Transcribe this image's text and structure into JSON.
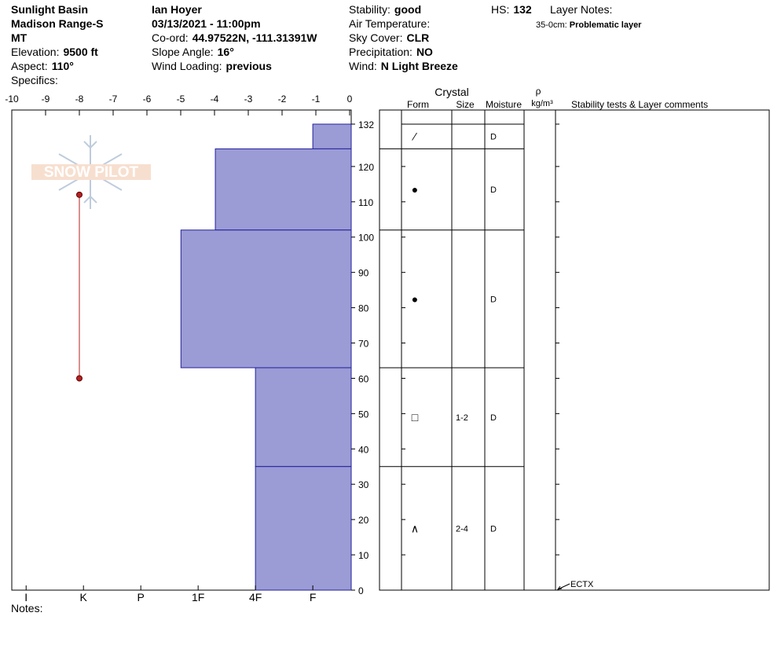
{
  "header": {
    "site": "Sunlight Basin",
    "range": "Madison Range-S",
    "state": "MT",
    "elevation": {
      "label": "Elevation:",
      "value": "9500 ft"
    },
    "aspect": {
      "label": "Aspect:",
      "value": "110°"
    },
    "specifics": {
      "label": "Specifics:"
    },
    "observer": "Ian Hoyer",
    "datetime": "03/13/2021 - 11:00pm",
    "coord": {
      "label": "Co-ord:",
      "value": "44.97522N, -111.31391W"
    },
    "slope": {
      "label": "Slope Angle:",
      "value": "16°"
    },
    "wind_loading": {
      "label": "Wind Loading:",
      "value": "previous"
    },
    "stability": {
      "label": "Stability:",
      "value": "good"
    },
    "air_temperature": {
      "label": "Air Temperature:"
    },
    "sky": {
      "label": "Sky Cover:",
      "value": "CLR"
    },
    "precipitation": {
      "label": "Precipitation:",
      "value": "NO"
    },
    "wind": {
      "label": "Wind:",
      "value": "N Light Breeze"
    },
    "hs": {
      "label": "HS:",
      "value": 132
    },
    "layer_notes": {
      "label": "Layer Notes:",
      "range": "35-0cm:",
      "text": "Problematic layer"
    },
    "notes": {
      "label": "Notes:"
    },
    "logo": "SNOW PILOT"
  },
  "profile": {
    "ylim": [
      0,
      136
    ],
    "height_ticks": [
      0,
      10,
      20,
      30,
      40,
      50,
      60,
      70,
      80,
      90,
      100,
      110,
      120,
      132
    ],
    "temperature_xlim": [
      -10,
      0
    ],
    "temperature_ticks": [
      -10,
      -9,
      -8,
      -7,
      -6,
      -5,
      -4,
      -3,
      -2,
      -1,
      0
    ],
    "hardness_xlim": [
      6.25,
      0.33
    ],
    "hardness_ticks": [
      {
        "value": 6,
        "label": "I"
      },
      {
        "value": 5,
        "label": "K"
      },
      {
        "value": 4,
        "label": "P"
      },
      {
        "value": 3,
        "label": "1F"
      },
      {
        "value": 2,
        "label": "4F"
      },
      {
        "value": 1,
        "label": "F"
      }
    ],
    "fill": "#9b9bd6",
    "layers": [
      {
        "top": 132,
        "bottom": 125,
        "hardness": 1,
        "form": "⁄",
        "size": null,
        "moisture": "D"
      },
      {
        "top": 125,
        "bottom": 102,
        "hardness": 2.7,
        "form": "●",
        "size": null,
        "moisture": "D"
      },
      {
        "top": 102,
        "bottom": 63,
        "hardness": 3.3,
        "form": "●",
        "size": null,
        "moisture": "D"
      },
      {
        "top": 63,
        "bottom": 35,
        "hardness": 2,
        "form": "□",
        "size": "1-2",
        "moisture": "D"
      },
      {
        "top": 35,
        "bottom": 0,
        "hardness": 2,
        "form": "∧",
        "size": "2-4",
        "moisture": "D"
      }
    ],
    "temperature": {
      "heights": [
        112,
        60
      ],
      "values": [
        -8,
        -8
      ],
      "color": "#b22222"
    }
  },
  "table": {
    "crystal": "Crystal",
    "form": "Form",
    "size": "Size",
    "moisture": "Moisture",
    "rho": "ρ",
    "density_unit": "kg/m³",
    "comments": "Stability tests & Layer comments"
  },
  "stability_tests": [
    {
      "height": 0,
      "label": "ECTX"
    }
  ]
}
